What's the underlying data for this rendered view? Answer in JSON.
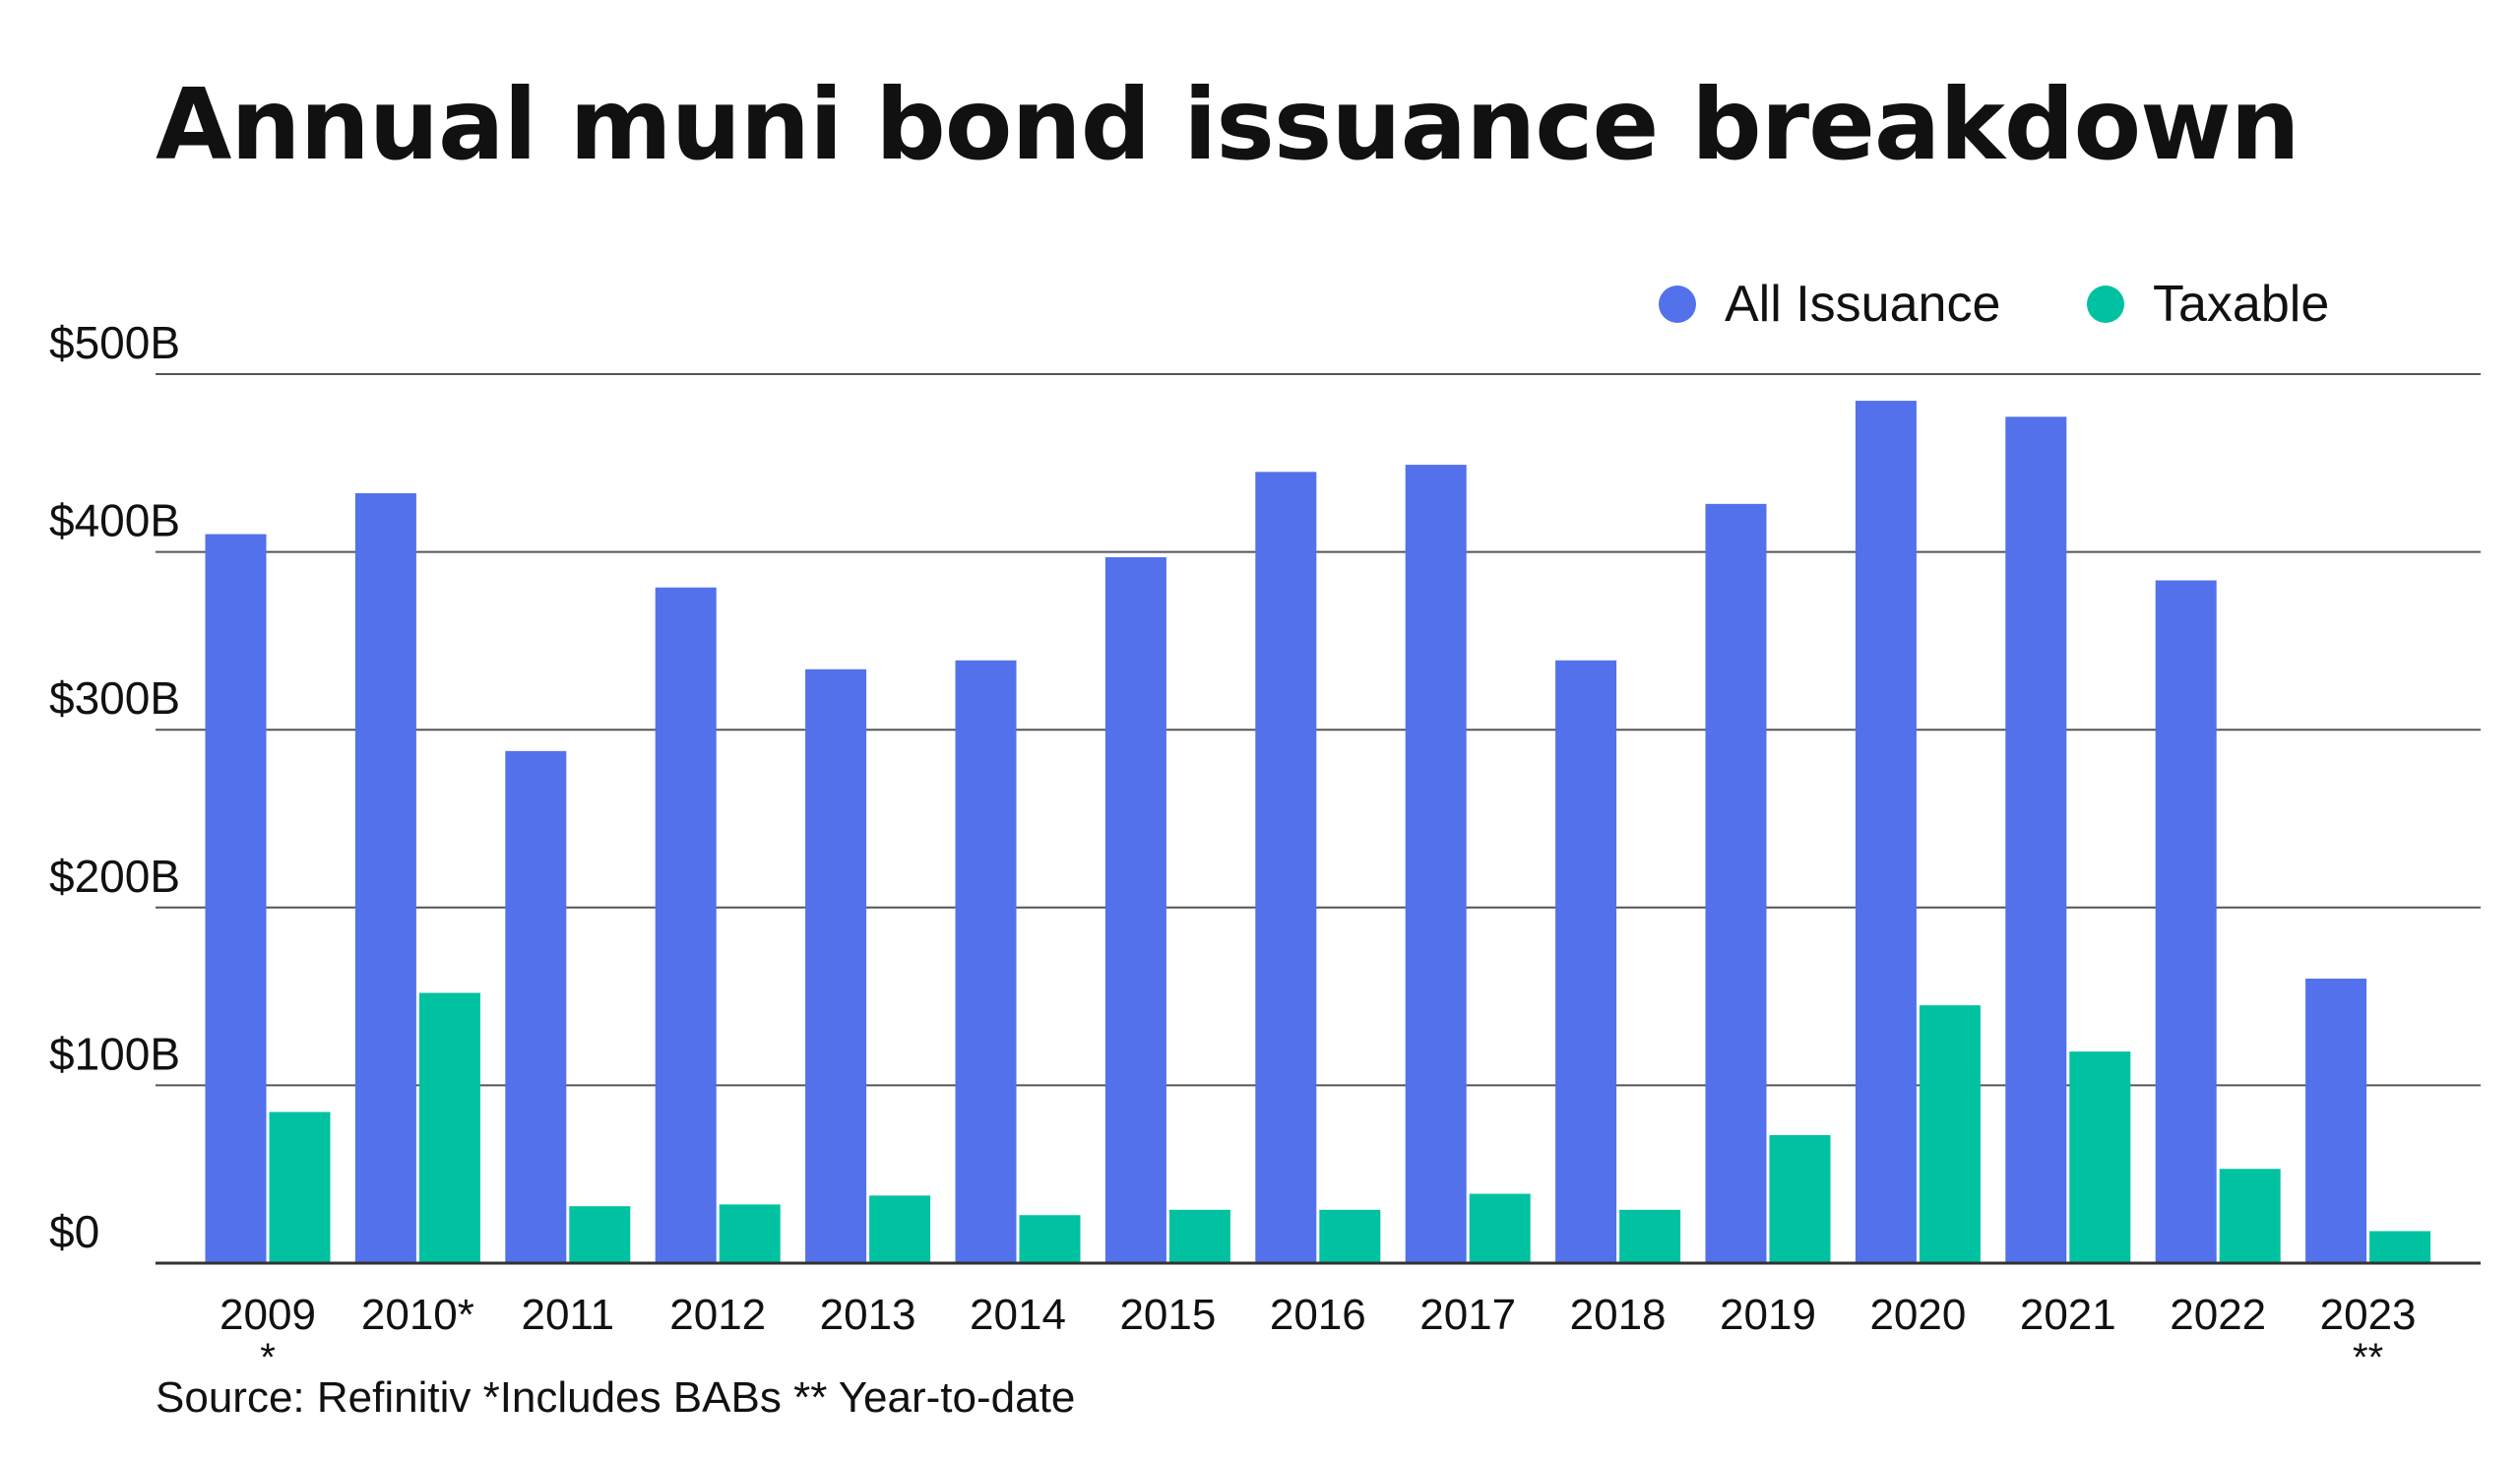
{
  "chart_data": {
    "type": "bar",
    "title": "Annual muni bond issuance breakdown",
    "source": "Source: Refinitiv *Includes BABs ** Year-to-date",
    "categories": [
      {
        "label": "2009",
        "note": "*"
      },
      {
        "label": "2010*",
        "note": ""
      },
      {
        "label": "2011",
        "note": ""
      },
      {
        "label": "2012",
        "note": ""
      },
      {
        "label": "2013",
        "note": ""
      },
      {
        "label": "2014",
        "note": ""
      },
      {
        "label": "2015",
        "note": ""
      },
      {
        "label": "2016",
        "note": ""
      },
      {
        "label": "2017",
        "note": ""
      },
      {
        "label": "2018",
        "note": ""
      },
      {
        "label": "2019",
        "note": ""
      },
      {
        "label": "2020",
        "note": ""
      },
      {
        "label": "2021",
        "note": ""
      },
      {
        "label": "2022",
        "note": ""
      },
      {
        "label": "2023",
        "note": "**"
      }
    ],
    "series": [
      {
        "name": "All Issuance",
        "color": "#5271EB",
        "values": [
          410,
          433,
          288,
          380,
          334,
          339,
          397,
          445,
          449,
          339,
          427,
          485,
          476,
          384,
          160
        ]
      },
      {
        "name": "Taxable",
        "color": "#00C2A0",
        "values": [
          85,
          152,
          32,
          33,
          38,
          27,
          30,
          30,
          39,
          30,
          72,
          145,
          119,
          53,
          18
        ]
      }
    ],
    "yticks": [
      {
        "value": 0,
        "label": "$0"
      },
      {
        "value": 100,
        "label": "$100B"
      },
      {
        "value": 200,
        "label": "$200B"
      },
      {
        "value": 300,
        "label": "$300B"
      },
      {
        "value": 400,
        "label": "$400B"
      },
      {
        "value": 500,
        "label": "$500B"
      }
    ],
    "ylim": [
      0,
      500
    ],
    "grid": true,
    "legend_position": "top-right"
  }
}
